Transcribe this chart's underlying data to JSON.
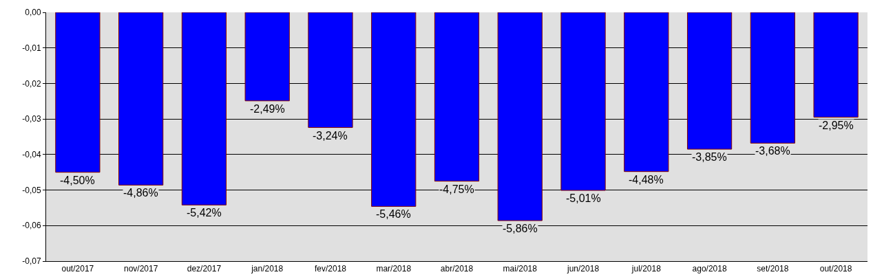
{
  "chart_data": {
    "type": "bar",
    "categories": [
      "out/2017",
      "nov/2017",
      "dez/2017",
      "jan/2018",
      "fev/2018",
      "mar/2018",
      "abr/2018",
      "mai/2018",
      "jun/2018",
      "jul/2018",
      "ago/2018",
      "set/2018",
      "out/2018"
    ],
    "values": [
      -0.045,
      -0.0486,
      -0.0542,
      -0.0249,
      -0.0324,
      -0.0546,
      -0.0475,
      -0.0586,
      -0.0501,
      -0.0448,
      -0.0385,
      -0.0368,
      -0.0295
    ],
    "value_labels": [
      "-4,50%",
      "-4,86%",
      "-5,42%",
      "-2,49%",
      "-3,24%",
      "-5,46%",
      "-4,75%",
      "-5,86%",
      "-5,01%",
      "-4,48%",
      "-3,85%",
      "-3,68%",
      "-2,95%"
    ],
    "color": "#0000ff",
    "ylim": [
      -0.07,
      0
    ],
    "yticks": [
      {
        "value": 0,
        "label": "0,00"
      },
      {
        "value": -0.01,
        "label": "-0,01"
      },
      {
        "value": -0.02,
        "label": "-0,02"
      },
      {
        "value": -0.03,
        "label": "-0,03"
      },
      {
        "value": -0.04,
        "label": "-0,04"
      },
      {
        "value": -0.05,
        "label": "-0,05"
      },
      {
        "value": -0.06,
        "label": "-0,06"
      },
      {
        "value": -0.07,
        "label": "-0,07"
      }
    ],
    "grid": "y"
  }
}
